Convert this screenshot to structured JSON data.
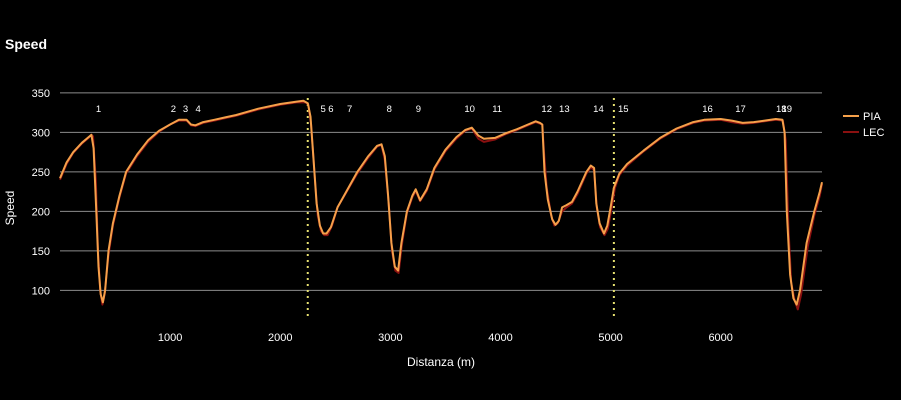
{
  "title": "Speed",
  "colors": {
    "background": "#000000",
    "grid": "#8c8c8c",
    "sector": "#e6e070"
  },
  "chart_data": {
    "type": "line",
    "title": "Speed",
    "xlabel": "Distanza (m)",
    "ylabel": "Speed",
    "xlim": [
      0,
      6920
    ],
    "ylim": [
      60,
      360
    ],
    "xticks": [
      1000,
      2000,
      3000,
      4000,
      5000,
      6000
    ],
    "yticks": [
      100,
      150,
      200,
      250,
      300,
      350
    ],
    "grid": "horizontal",
    "legend_position": "right",
    "sector_lines": [
      2250,
      5030
    ],
    "corners": [
      {
        "label": "1",
        "x": 350
      },
      {
        "label": "2",
        "x": 1030
      },
      {
        "label": "3",
        "x": 1140
      },
      {
        "label": "4",
        "x": 1255
      },
      {
        "label": "5",
        "x": 2390
      },
      {
        "label": "6",
        "x": 2460
      },
      {
        "label": "7",
        "x": 2630
      },
      {
        "label": "8",
        "x": 2990
      },
      {
        "label": "9",
        "x": 3255
      },
      {
        "label": "10",
        "x": 3720
      },
      {
        "label": "11",
        "x": 3970
      },
      {
        "label": "12",
        "x": 4420
      },
      {
        "label": "13",
        "x": 4580
      },
      {
        "label": "14",
        "x": 4890
      },
      {
        "label": "15",
        "x": 5115
      },
      {
        "label": "16",
        "x": 5880
      },
      {
        "label": "17",
        "x": 6180
      },
      {
        "label": "18",
        "x": 6550
      },
      {
        "label": "19",
        "x": 6600
      }
    ],
    "series": [
      {
        "name": "PIA",
        "color": "#f5a04a",
        "points": [
          [
            0,
            242
          ],
          [
            60,
            262
          ],
          [
            120,
            275
          ],
          [
            200,
            287
          ],
          [
            260,
            294
          ],
          [
            285,
            297
          ],
          [
            305,
            280
          ],
          [
            330,
            200
          ],
          [
            350,
            130
          ],
          [
            370,
            95
          ],
          [
            390,
            85
          ],
          [
            410,
            100
          ],
          [
            440,
            150
          ],
          [
            480,
            185
          ],
          [
            540,
            220
          ],
          [
            600,
            250
          ],
          [
            700,
            272
          ],
          [
            800,
            290
          ],
          [
            900,
            302
          ],
          [
            1000,
            310
          ],
          [
            1080,
            316
          ],
          [
            1150,
            316
          ],
          [
            1190,
            310
          ],
          [
            1230,
            309
          ],
          [
            1300,
            313
          ],
          [
            1400,
            316
          ],
          [
            1500,
            319
          ],
          [
            1600,
            322
          ],
          [
            1800,
            330
          ],
          [
            2000,
            336
          ],
          [
            2150,
            339
          ],
          [
            2210,
            340
          ],
          [
            2250,
            337
          ],
          [
            2275,
            320
          ],
          [
            2300,
            270
          ],
          [
            2330,
            210
          ],
          [
            2360,
            182
          ],
          [
            2390,
            172
          ],
          [
            2420,
            172
          ],
          [
            2460,
            180
          ],
          [
            2520,
            205
          ],
          [
            2600,
            225
          ],
          [
            2700,
            250
          ],
          [
            2800,
            270
          ],
          [
            2880,
            283
          ],
          [
            2920,
            285
          ],
          [
            2950,
            270
          ],
          [
            2980,
            220
          ],
          [
            3010,
            160
          ],
          [
            3040,
            130
          ],
          [
            3070,
            125
          ],
          [
            3100,
            160
          ],
          [
            3150,
            200
          ],
          [
            3200,
            220
          ],
          [
            3230,
            228
          ],
          [
            3270,
            214
          ],
          [
            3330,
            228
          ],
          [
            3400,
            255
          ],
          [
            3500,
            278
          ],
          [
            3600,
            294
          ],
          [
            3680,
            303
          ],
          [
            3740,
            306
          ],
          [
            3800,
            296
          ],
          [
            3850,
            292
          ],
          [
            3950,
            293
          ],
          [
            4050,
            299
          ],
          [
            4150,
            304
          ],
          [
            4250,
            310
          ],
          [
            4320,
            314
          ],
          [
            4360,
            312
          ],
          [
            4380,
            310
          ],
          [
            4400,
            250
          ],
          [
            4430,
            215
          ],
          [
            4470,
            190
          ],
          [
            4500,
            183
          ],
          [
            4530,
            188
          ],
          [
            4560,
            205
          ],
          [
            4600,
            208
          ],
          [
            4650,
            212
          ],
          [
            4700,
            225
          ],
          [
            4780,
            250
          ],
          [
            4820,
            258
          ],
          [
            4850,
            255
          ],
          [
            4870,
            210
          ],
          [
            4900,
            185
          ],
          [
            4940,
            172
          ],
          [
            4970,
            182
          ],
          [
            5000,
            205
          ],
          [
            5030,
            230
          ],
          [
            5080,
            248
          ],
          [
            5150,
            260
          ],
          [
            5300,
            277
          ],
          [
            5450,
            293
          ],
          [
            5600,
            305
          ],
          [
            5750,
            313
          ],
          [
            5850,
            316
          ],
          [
            6000,
            317
          ],
          [
            6100,
            315
          ],
          [
            6200,
            312
          ],
          [
            6300,
            313
          ],
          [
            6400,
            315
          ],
          [
            6500,
            317
          ],
          [
            6560,
            316
          ],
          [
            6580,
            300
          ],
          [
            6600,
            200
          ],
          [
            6630,
            120
          ],
          [
            6660,
            90
          ],
          [
            6690,
            82
          ],
          [
            6720,
            100
          ],
          [
            6780,
            160
          ],
          [
            6850,
            200
          ],
          [
            6900,
            225
          ],
          [
            6920,
            237
          ]
        ]
      },
      {
        "name": "LEC",
        "color": "#8a1010",
        "points": [
          [
            0,
            240
          ],
          [
            60,
            260
          ],
          [
            120,
            274
          ],
          [
            200,
            286
          ],
          [
            260,
            293
          ],
          [
            285,
            297
          ],
          [
            300,
            295
          ],
          [
            325,
            240
          ],
          [
            345,
            150
          ],
          [
            365,
            100
          ],
          [
            385,
            82
          ],
          [
            405,
            95
          ],
          [
            440,
            145
          ],
          [
            480,
            182
          ],
          [
            540,
            218
          ],
          [
            600,
            248
          ],
          [
            700,
            270
          ],
          [
            800,
            288
          ],
          [
            900,
            301
          ],
          [
            1000,
            310
          ],
          [
            1080,
            315
          ],
          [
            1150,
            315
          ],
          [
            1190,
            309
          ],
          [
            1230,
            308
          ],
          [
            1300,
            312
          ],
          [
            1400,
            315
          ],
          [
            1500,
            318
          ],
          [
            1600,
            321
          ],
          [
            1800,
            329
          ],
          [
            2000,
            335
          ],
          [
            2150,
            338
          ],
          [
            2230,
            338
          ],
          [
            2255,
            335
          ],
          [
            2280,
            310
          ],
          [
            2310,
            250
          ],
          [
            2340,
            195
          ],
          [
            2370,
            175
          ],
          [
            2400,
            170
          ],
          [
            2430,
            170
          ],
          [
            2470,
            182
          ],
          [
            2520,
            205
          ],
          [
            2600,
            224
          ],
          [
            2700,
            248
          ],
          [
            2800,
            268
          ],
          [
            2880,
            282
          ],
          [
            2920,
            284
          ],
          [
            2950,
            265
          ],
          [
            2985,
            210
          ],
          [
            3015,
            150
          ],
          [
            3045,
            125
          ],
          [
            3075,
            122
          ],
          [
            3105,
            158
          ],
          [
            3150,
            198
          ],
          [
            3200,
            218
          ],
          [
            3230,
            226
          ],
          [
            3270,
            213
          ],
          [
            3330,
            226
          ],
          [
            3400,
            253
          ],
          [
            3500,
            276
          ],
          [
            3600,
            292
          ],
          [
            3680,
            302
          ],
          [
            3740,
            305
          ],
          [
            3800,
            292
          ],
          [
            3850,
            288
          ],
          [
            3950,
            291
          ],
          [
            4050,
            298
          ],
          [
            4150,
            303
          ],
          [
            4250,
            309
          ],
          [
            4320,
            313
          ],
          [
            4380,
            310
          ],
          [
            4395,
            275
          ],
          [
            4420,
            230
          ],
          [
            4460,
            195
          ],
          [
            4490,
            182
          ],
          [
            4520,
            185
          ],
          [
            4560,
            200
          ],
          [
            4600,
            205
          ],
          [
            4650,
            210
          ],
          [
            4700,
            222
          ],
          [
            4780,
            248
          ],
          [
            4820,
            256
          ],
          [
            4850,
            252
          ],
          [
            4875,
            205
          ],
          [
            4905,
            180
          ],
          [
            4945,
            170
          ],
          [
            4975,
            178
          ],
          [
            5010,
            205
          ],
          [
            5040,
            230
          ],
          [
            5080,
            246
          ],
          [
            5150,
            258
          ],
          [
            5300,
            276
          ],
          [
            5450,
            292
          ],
          [
            5600,
            304
          ],
          [
            5750,
            312
          ],
          [
            5850,
            315
          ],
          [
            6000,
            316
          ],
          [
            6100,
            313
          ],
          [
            6200,
            311
          ],
          [
            6300,
            312
          ],
          [
            6400,
            314
          ],
          [
            6500,
            316
          ],
          [
            6565,
            315
          ],
          [
            6590,
            290
          ],
          [
            6615,
            180
          ],
          [
            6640,
            110
          ],
          [
            6670,
            88
          ],
          [
            6700,
            76
          ],
          [
            6730,
            95
          ],
          [
            6790,
            155
          ],
          [
            6850,
            195
          ],
          [
            6900,
            220
          ],
          [
            6920,
            235
          ]
        ]
      }
    ]
  }
}
